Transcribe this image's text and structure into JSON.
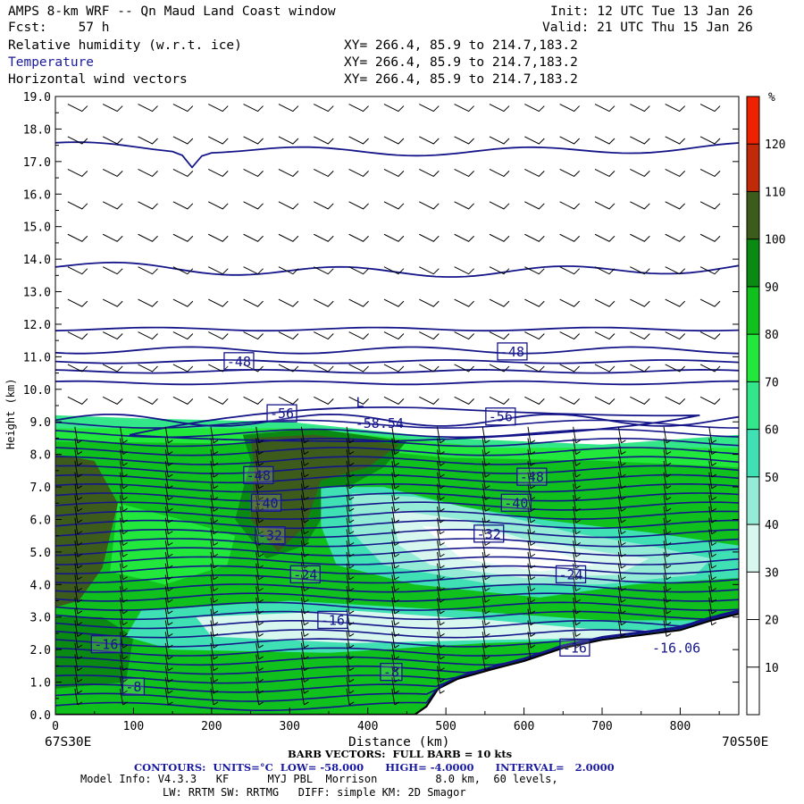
{
  "header": {
    "title": "AMPS 8-km WRF -- Qn Maud Land Coast window",
    "forecast": "Fcst:    57 h",
    "init": "Init: 12 UTC Tue 13 Jan 26",
    "valid": "Valid: 21 UTC Thu 15 Jan 26",
    "fields": [
      {
        "name": "Relative humidity (w.r.t. ice)",
        "xy": "XY= 266.4, 85.9 to 214.7,183.2",
        "color": "#000000"
      },
      {
        "name": "Temperature",
        "xy": "XY= 266.4, 85.9 to 214.7,183.2",
        "color": "#1a1aa0"
      },
      {
        "name": "Horizontal wind vectors",
        "xy": "XY= 266.4, 85.9 to 214.7,183.2",
        "color": "#000000"
      }
    ]
  },
  "chart_data": {
    "type": "heatmap",
    "title": "Cross section: relative humidity (fill), temperature (contours), horizontal wind (barbs)",
    "xlabel": "Distance (km)",
    "ylabel": "Height (km)",
    "xlim": [
      0,
      875
    ],
    "ylim": [
      0,
      19
    ],
    "x_ticks": [
      0,
      100,
      200,
      300,
      400,
      500,
      600,
      700,
      800
    ],
    "y_ticks": [
      "0.0",
      "1.0",
      "2.0",
      "3.0",
      "4.0",
      "5.0",
      "6.0",
      "7.0",
      "8.0",
      "9.0",
      "10.0",
      "11.0",
      "12.0",
      "13.0",
      "14.0",
      "15.0",
      "16.0",
      "17.0",
      "18.0",
      "19.0"
    ],
    "start_label": "67S30E",
    "end_label": "70S50E",
    "colorbar": {
      "unit": "%",
      "ticks": [
        10,
        20,
        30,
        40,
        50,
        60,
        70,
        80,
        90,
        100,
        110,
        120
      ],
      "bins": [
        {
          "lo": 0,
          "hi": 10,
          "color": "#ffffff"
        },
        {
          "lo": 10,
          "hi": 20,
          "color": "#ffffff"
        },
        {
          "lo": 20,
          "hi": 30,
          "color": "#ffffff"
        },
        {
          "lo": 30,
          "hi": 40,
          "color": "#d8f7ee"
        },
        {
          "lo": 40,
          "hi": 50,
          "color": "#94ecd6"
        },
        {
          "lo": 50,
          "hi": 60,
          "color": "#3ee0b4"
        },
        {
          "lo": 60,
          "hi": 70,
          "color": "#34e68a"
        },
        {
          "lo": 70,
          "hi": 80,
          "color": "#22e83c"
        },
        {
          "lo": 80,
          "hi": 90,
          "color": "#10c01c"
        },
        {
          "lo": 90,
          "hi": 100,
          "color": "#0a8a12"
        },
        {
          "lo": 100,
          "hi": 110,
          "color": "#3d5c1c"
        },
        {
          "lo": 110,
          "hi": 120,
          "color": "#c02a08"
        },
        {
          "lo": 120,
          "hi": 130,
          "color": "#ee2200"
        }
      ]
    },
    "contour_labels": [
      {
        "text": "-48",
        "x": 235,
        "y": 10.85
      },
      {
        "text": "-48",
        "x": 585,
        "y": 11.15
      },
      {
        "text": "-56",
        "x": 290,
        "y": 9.25
      },
      {
        "text": "-56",
        "x": 570,
        "y": 9.15
      },
      {
        "text": "-48",
        "x": 260,
        "y": 7.35
      },
      {
        "text": "-48",
        "x": 610,
        "y": 7.3
      },
      {
        "text": "-40",
        "x": 270,
        "y": 6.5
      },
      {
        "text": "-40",
        "x": 590,
        "y": 6.5
      },
      {
        "text": "-32",
        "x": 275,
        "y": 5.5
      },
      {
        "text": "-32",
        "x": 555,
        "y": 5.55
      },
      {
        "text": "-24",
        "x": 320,
        "y": 4.3
      },
      {
        "text": "-24",
        "x": 660,
        "y": 4.3
      },
      {
        "text": "-16",
        "x": 355,
        "y": 2.9
      },
      {
        "text": "-16",
        "x": 65,
        "y": 2.15
      },
      {
        "text": "-16",
        "x": 665,
        "y": 2.05
      },
      {
        "text": "-8",
        "x": 430,
        "y": 1.3
      },
      {
        "text": "-8",
        "x": 100,
        "y": 0.85
      }
    ],
    "extrema_labels": [
      {
        "text": "L",
        "x": 390,
        "y": 9.6
      },
      {
        "text": "-58.54",
        "x": 415,
        "y": 8.95
      },
      {
        "text": "-16.06",
        "x": 795,
        "y": 2.05
      }
    ],
    "terrain": [
      {
        "x": 0,
        "z": 0
      },
      {
        "x": 460,
        "z": 0
      },
      {
        "x": 475,
        "z": 0.25
      },
      {
        "x": 490,
        "z": 0.8
      },
      {
        "x": 515,
        "z": 1.1
      },
      {
        "x": 560,
        "z": 1.4
      },
      {
        "x": 600,
        "z": 1.65
      },
      {
        "x": 650,
        "z": 2.05
      },
      {
        "x": 700,
        "z": 2.3
      },
      {
        "x": 750,
        "z": 2.45
      },
      {
        "x": 800,
        "z": 2.6
      },
      {
        "x": 840,
        "z": 2.9
      },
      {
        "x": 875,
        "z": 3.1
      }
    ]
  },
  "footer": {
    "barb_note": "BARB VECTORS:  FULL BARB = 10 kts",
    "contours_note": "CONTOURS:  UNITS=°C  LOW= -58.000      HIGH= -4.0000      INTERVAL=   2.0000",
    "model_info_1": "Model Info: V4.3.3   KF      MYJ PBL  Morrison         8.0 km,  60 levels,",
    "model_info_2": "LW: RRTM SW: RRTMG   DIFF: simple KM: 2D Smagor"
  }
}
